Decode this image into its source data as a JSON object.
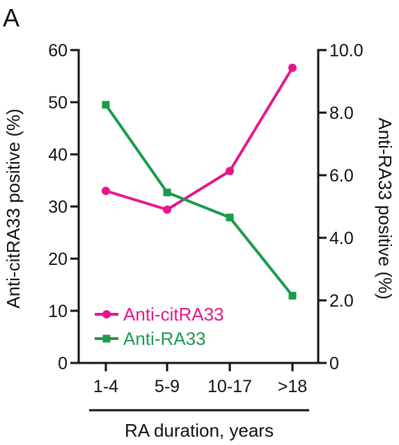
{
  "panel_label": "A",
  "colors": {
    "series1": "#e6168c",
    "series2": "#1a9a4c",
    "axis": "#111111"
  },
  "chart_data": {
    "type": "line",
    "categories": [
      "1-4",
      "5-9",
      "10-17",
      ">18"
    ],
    "xlabel": "RA duration, years",
    "ylabel_left": "Anti-citRA33 positive (%)",
    "ylabel_right": "Anti-RA33 positive (%)",
    "ylim_left": [
      0,
      60
    ],
    "ylim_right": [
      0,
      10
    ],
    "yticks_left": [
      "0",
      "10",
      "20",
      "30",
      "40",
      "50",
      "60"
    ],
    "yticks_right": [
      "0",
      "2.0",
      "4.0",
      "6.0",
      "8.0",
      "10.0"
    ],
    "grid": false,
    "legend_position": "bottom-left",
    "series": [
      {
        "name": "Anti-citRA33",
        "axis": "left",
        "marker": "circle",
        "values": [
          33.0,
          29.4,
          36.8,
          56.6
        ]
      },
      {
        "name": "Anti-RA33",
        "axis": "right",
        "marker": "square",
        "values": [
          8.25,
          5.45,
          4.65,
          2.15
        ]
      }
    ]
  }
}
